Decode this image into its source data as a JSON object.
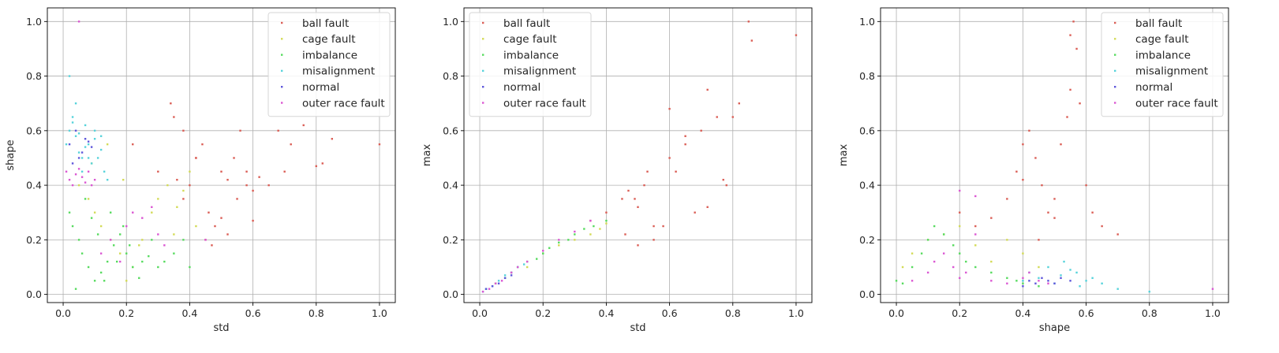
{
  "figure": {
    "legend_location": "upper right",
    "categories": [
      {
        "name": "ball fault",
        "color": "#db5f57"
      },
      {
        "name": "cage fault",
        "color": "#d3db57"
      },
      {
        "name": "imbalance",
        "color": "#57db5f"
      },
      {
        "name": "misalignment",
        "color": "#57d3db"
      },
      {
        "name": "normal",
        "color": "#5f57db"
      },
      {
        "name": "outer race fault",
        "color": "#db57d3"
      }
    ]
  },
  "chart_data": [
    {
      "type": "scatter",
      "title": "",
      "xlabel": "std",
      "ylabel": "shape",
      "xlim": [
        -0.05,
        1.05
      ],
      "ylim": [
        -0.03,
        1.05
      ],
      "xticks": [
        0.0,
        0.2,
        0.4,
        0.6,
        0.8,
        1.0
      ],
      "yticks": [
        0.0,
        0.2,
        0.4,
        0.6,
        0.8,
        1.0
      ],
      "tick_labels_x": [
        "0.0",
        "0.2",
        "0.4",
        "0.6",
        "0.8",
        "1.0"
      ],
      "tick_labels_y": [
        "0.0",
        "0.2",
        "0.4",
        "0.6",
        "0.8",
        "1.0"
      ],
      "grid": true,
      "legend": "top-right",
      "series": [
        {
          "name": "ball fault",
          "color": "#db5f57",
          "x": [
            0.22,
            0.3,
            0.34,
            0.35,
            0.38,
            0.4,
            0.42,
            0.44,
            0.46,
            0.48,
            0.5,
            0.52,
            0.54,
            0.56,
            0.58,
            0.6,
            0.62,
            0.65,
            0.68,
            0.7,
            0.72,
            0.76,
            0.8,
            0.82,
            0.85,
            1.0,
            0.45,
            0.47,
            0.5,
            0.52,
            0.55,
            0.58,
            0.6,
            0.38,
            0.36,
            0.42
          ],
          "y": [
            0.55,
            0.45,
            0.7,
            0.65,
            0.6,
            0.4,
            0.5,
            0.55,
            0.3,
            0.25,
            0.45,
            0.42,
            0.5,
            0.6,
            0.4,
            0.38,
            0.43,
            0.4,
            0.6,
            0.45,
            0.55,
            0.62,
            0.47,
            0.48,
            0.57,
            0.55,
            0.2,
            0.18,
            0.28,
            0.22,
            0.35,
            0.45,
            0.27,
            0.35,
            0.42,
            0.5
          ]
        },
        {
          "name": "cage fault",
          "color": "#d3db57",
          "x": [
            0.05,
            0.08,
            0.1,
            0.12,
            0.15,
            0.18,
            0.2,
            0.22,
            0.25,
            0.28,
            0.3,
            0.33,
            0.36,
            0.38,
            0.4,
            0.42,
            0.09,
            0.14,
            0.19,
            0.24,
            0.35
          ],
          "y": [
            0.4,
            0.35,
            0.3,
            0.25,
            0.2,
            0.15,
            0.05,
            0.1,
            0.2,
            0.3,
            0.35,
            0.4,
            0.32,
            0.38,
            0.45,
            0.25,
            0.48,
            0.55,
            0.42,
            0.18,
            0.22
          ]
        },
        {
          "name": "imbalance",
          "color": "#57db5f",
          "x": [
            0.02,
            0.03,
            0.05,
            0.06,
            0.08,
            0.1,
            0.12,
            0.14,
            0.16,
            0.18,
            0.2,
            0.22,
            0.25,
            0.28,
            0.3,
            0.32,
            0.35,
            0.38,
            0.4,
            0.04,
            0.07,
            0.09,
            0.11,
            0.13,
            0.15,
            0.17,
            0.19,
            0.21,
            0.24,
            0.27
          ],
          "y": [
            0.3,
            0.25,
            0.2,
            0.15,
            0.1,
            0.05,
            0.08,
            0.12,
            0.18,
            0.22,
            0.15,
            0.1,
            0.12,
            0.2,
            0.1,
            0.12,
            0.15,
            0.2,
            0.1,
            0.02,
            0.35,
            0.28,
            0.22,
            0.05,
            0.3,
            0.12,
            0.25,
            0.18,
            0.06,
            0.14
          ]
        },
        {
          "name": "misalignment",
          "color": "#57d3db",
          "x": [
            0.01,
            0.02,
            0.03,
            0.04,
            0.05,
            0.06,
            0.07,
            0.08,
            0.09,
            0.1,
            0.11,
            0.12,
            0.13,
            0.14,
            0.02,
            0.04,
            0.06,
            0.08,
            0.1,
            0.12,
            0.03,
            0.05,
            0.07
          ],
          "y": [
            0.55,
            0.6,
            0.65,
            0.58,
            0.52,
            0.5,
            0.62,
            0.55,
            0.48,
            0.6,
            0.5,
            0.58,
            0.45,
            0.42,
            0.8,
            0.7,
            0.45,
            0.5,
            0.57,
            0.53,
            0.63,
            0.59,
            0.54
          ]
        },
        {
          "name": "normal",
          "color": "#5f57db",
          "x": [
            0.02,
            0.04,
            0.06,
            0.08,
            0.03,
            0.05,
            0.07,
            0.09
          ],
          "y": [
            0.55,
            0.6,
            0.52,
            0.56,
            0.48,
            0.5,
            0.57,
            0.54
          ]
        },
        {
          "name": "outer race fault",
          "color": "#db57d3",
          "x": [
            0.01,
            0.02,
            0.03,
            0.04,
            0.05,
            0.06,
            0.07,
            0.08,
            0.09,
            0.1,
            0.12,
            0.15,
            0.18,
            0.2,
            0.22,
            0.25,
            0.28,
            0.3,
            0.32,
            0.05,
            0.45
          ],
          "y": [
            0.45,
            0.42,
            0.4,
            0.44,
            0.46,
            0.43,
            0.41,
            0.45,
            0.4,
            0.42,
            0.15,
            0.2,
            0.12,
            0.25,
            0.3,
            0.28,
            0.32,
            0.22,
            0.18,
            1.0,
            0.2
          ]
        }
      ]
    },
    {
      "type": "scatter",
      "title": "",
      "xlabel": "std",
      "ylabel": "max",
      "xlim": [
        -0.05,
        1.05
      ],
      "ylim": [
        -0.03,
        1.05
      ],
      "xticks": [
        0.0,
        0.2,
        0.4,
        0.6,
        0.8,
        1.0
      ],
      "yticks": [
        0.0,
        0.2,
        0.4,
        0.6,
        0.8,
        1.0
      ],
      "tick_labels_x": [
        "0.0",
        "0.2",
        "0.4",
        "0.6",
        "0.8",
        "1.0"
      ],
      "tick_labels_y": [
        "0.0",
        "0.2",
        "0.4",
        "0.6",
        "0.8",
        "1.0"
      ],
      "grid": true,
      "legend": "top-left",
      "series": [
        {
          "name": "ball fault",
          "color": "#db5f57",
          "x": [
            0.35,
            0.4,
            0.45,
            0.47,
            0.5,
            0.52,
            0.55,
            0.58,
            0.6,
            0.62,
            0.65,
            0.68,
            0.7,
            0.72,
            0.75,
            0.78,
            0.8,
            0.82,
            0.85,
            0.86,
            1.0,
            0.46,
            0.5,
            0.55,
            0.6,
            0.65,
            0.72,
            0.77,
            0.49,
            0.53
          ],
          "y": [
            0.27,
            0.3,
            0.35,
            0.38,
            0.32,
            0.4,
            0.2,
            0.25,
            0.5,
            0.45,
            0.55,
            0.3,
            0.6,
            0.75,
            0.65,
            0.4,
            0.65,
            0.7,
            1.0,
            0.93,
            0.95,
            0.22,
            0.18,
            0.25,
            0.68,
            0.58,
            0.32,
            0.42,
            0.35,
            0.45
          ]
        },
        {
          "name": "cage fault",
          "color": "#d3db57",
          "x": [
            0.05,
            0.1,
            0.15,
            0.2,
            0.25,
            0.3,
            0.35,
            0.38,
            0.4
          ],
          "y": [
            0.04,
            0.08,
            0.1,
            0.15,
            0.18,
            0.2,
            0.22,
            0.24,
            0.26
          ]
        },
        {
          "name": "imbalance",
          "color": "#57db5f",
          "x": [
            0.02,
            0.05,
            0.08,
            0.1,
            0.12,
            0.15,
            0.18,
            0.2,
            0.22,
            0.25,
            0.28,
            0.3,
            0.33,
            0.36,
            0.4
          ],
          "y": [
            0.02,
            0.04,
            0.06,
            0.08,
            0.1,
            0.12,
            0.13,
            0.15,
            0.17,
            0.19,
            0.2,
            0.22,
            0.24,
            0.25,
            0.27
          ]
        },
        {
          "name": "misalignment",
          "color": "#57d3db",
          "x": [
            0.01,
            0.02,
            0.04,
            0.06,
            0.08,
            0.1,
            0.12,
            0.14
          ],
          "y": [
            0.01,
            0.02,
            0.03,
            0.05,
            0.07,
            0.08,
            0.1,
            0.11
          ]
        },
        {
          "name": "normal",
          "color": "#5f57db",
          "x": [
            0.02,
            0.04,
            0.06,
            0.08,
            0.1
          ],
          "y": [
            0.02,
            0.03,
            0.04,
            0.06,
            0.07
          ]
        },
        {
          "name": "outer race fault",
          "color": "#db57d3",
          "x": [
            0.01,
            0.03,
            0.05,
            0.07,
            0.1,
            0.12,
            0.15,
            0.2,
            0.25,
            0.3,
            0.35
          ],
          "y": [
            0.01,
            0.02,
            0.04,
            0.05,
            0.08,
            0.1,
            0.12,
            0.16,
            0.2,
            0.23,
            0.27
          ]
        }
      ]
    },
    {
      "type": "scatter",
      "title": "",
      "xlabel": "shape",
      "ylabel": "max",
      "xlim": [
        -0.05,
        1.05
      ],
      "ylim": [
        -0.03,
        1.05
      ],
      "xticks": [
        0.0,
        0.2,
        0.4,
        0.6,
        0.8,
        1.0
      ],
      "yticks": [
        0.0,
        0.2,
        0.4,
        0.6,
        0.8,
        1.0
      ],
      "tick_labels_x": [
        "0.0",
        "0.2",
        "0.4",
        "0.6",
        "0.8",
        "1.0"
      ],
      "tick_labels_y": [
        "0.0",
        "0.2",
        "0.4",
        "0.6",
        "0.8",
        "1.0"
      ],
      "grid": true,
      "legend": "top-right",
      "series": [
        {
          "name": "ball fault",
          "color": "#db5f57",
          "x": [
            0.2,
            0.25,
            0.3,
            0.35,
            0.38,
            0.4,
            0.42,
            0.44,
            0.46,
            0.48,
            0.5,
            0.52,
            0.54,
            0.55,
            0.56,
            0.57,
            0.58,
            0.6,
            0.62,
            0.65,
            0.7,
            0.45,
            0.5,
            0.4,
            0.55
          ],
          "y": [
            0.3,
            0.25,
            0.28,
            0.35,
            0.45,
            0.55,
            0.6,
            0.5,
            0.4,
            0.3,
            0.35,
            0.55,
            0.65,
            0.95,
            1.0,
            0.9,
            0.7,
            0.4,
            0.3,
            0.25,
            0.22,
            0.2,
            0.28,
            0.42,
            0.75
          ]
        },
        {
          "name": "cage fault",
          "color": "#d3db57",
          "x": [
            0.02,
            0.05,
            0.1,
            0.15,
            0.2,
            0.25,
            0.3,
            0.35,
            0.4,
            0.45
          ],
          "y": [
            0.1,
            0.15,
            0.2,
            0.22,
            0.25,
            0.18,
            0.12,
            0.2,
            0.15,
            0.1
          ]
        },
        {
          "name": "imbalance",
          "color": "#57db5f",
          "x": [
            0.0,
            0.02,
            0.05,
            0.08,
            0.1,
            0.12,
            0.15,
            0.18,
            0.2,
            0.22,
            0.25,
            0.3,
            0.35,
            0.38,
            0.4,
            0.45
          ],
          "y": [
            0.05,
            0.04,
            0.1,
            0.15,
            0.2,
            0.25,
            0.22,
            0.18,
            0.15,
            0.12,
            0.1,
            0.08,
            0.06,
            0.05,
            0.04,
            0.03
          ]
        },
        {
          "name": "misalignment",
          "color": "#57d3db",
          "x": [
            0.4,
            0.42,
            0.45,
            0.48,
            0.5,
            0.52,
            0.55,
            0.58,
            0.6,
            0.62,
            0.65,
            0.7,
            0.8,
            0.53,
            0.57
          ],
          "y": [
            0.05,
            0.08,
            0.06,
            0.1,
            0.04,
            0.07,
            0.09,
            0.03,
            0.05,
            0.06,
            0.04,
            0.02,
            0.01,
            0.12,
            0.08
          ]
        },
        {
          "name": "normal",
          "color": "#5f57db",
          "x": [
            0.4,
            0.42,
            0.44,
            0.46,
            0.48,
            0.5,
            0.52,
            0.55
          ],
          "y": [
            0.03,
            0.05,
            0.04,
            0.06,
            0.05,
            0.04,
            0.06,
            0.05
          ]
        },
        {
          "name": "outer race fault",
          "color": "#db57d3",
          "x": [
            0.05,
            0.1,
            0.12,
            0.15,
            0.18,
            0.2,
            0.22,
            0.25,
            0.3,
            0.35,
            0.4,
            0.42,
            0.45,
            0.48,
            0.2,
            0.25,
            1.0
          ],
          "y": [
            0.05,
            0.08,
            0.12,
            0.15,
            0.1,
            0.06,
            0.08,
            0.22,
            0.05,
            0.04,
            0.06,
            0.08,
            0.05,
            0.04,
            0.38,
            0.36,
            0.02
          ]
        }
      ]
    }
  ]
}
